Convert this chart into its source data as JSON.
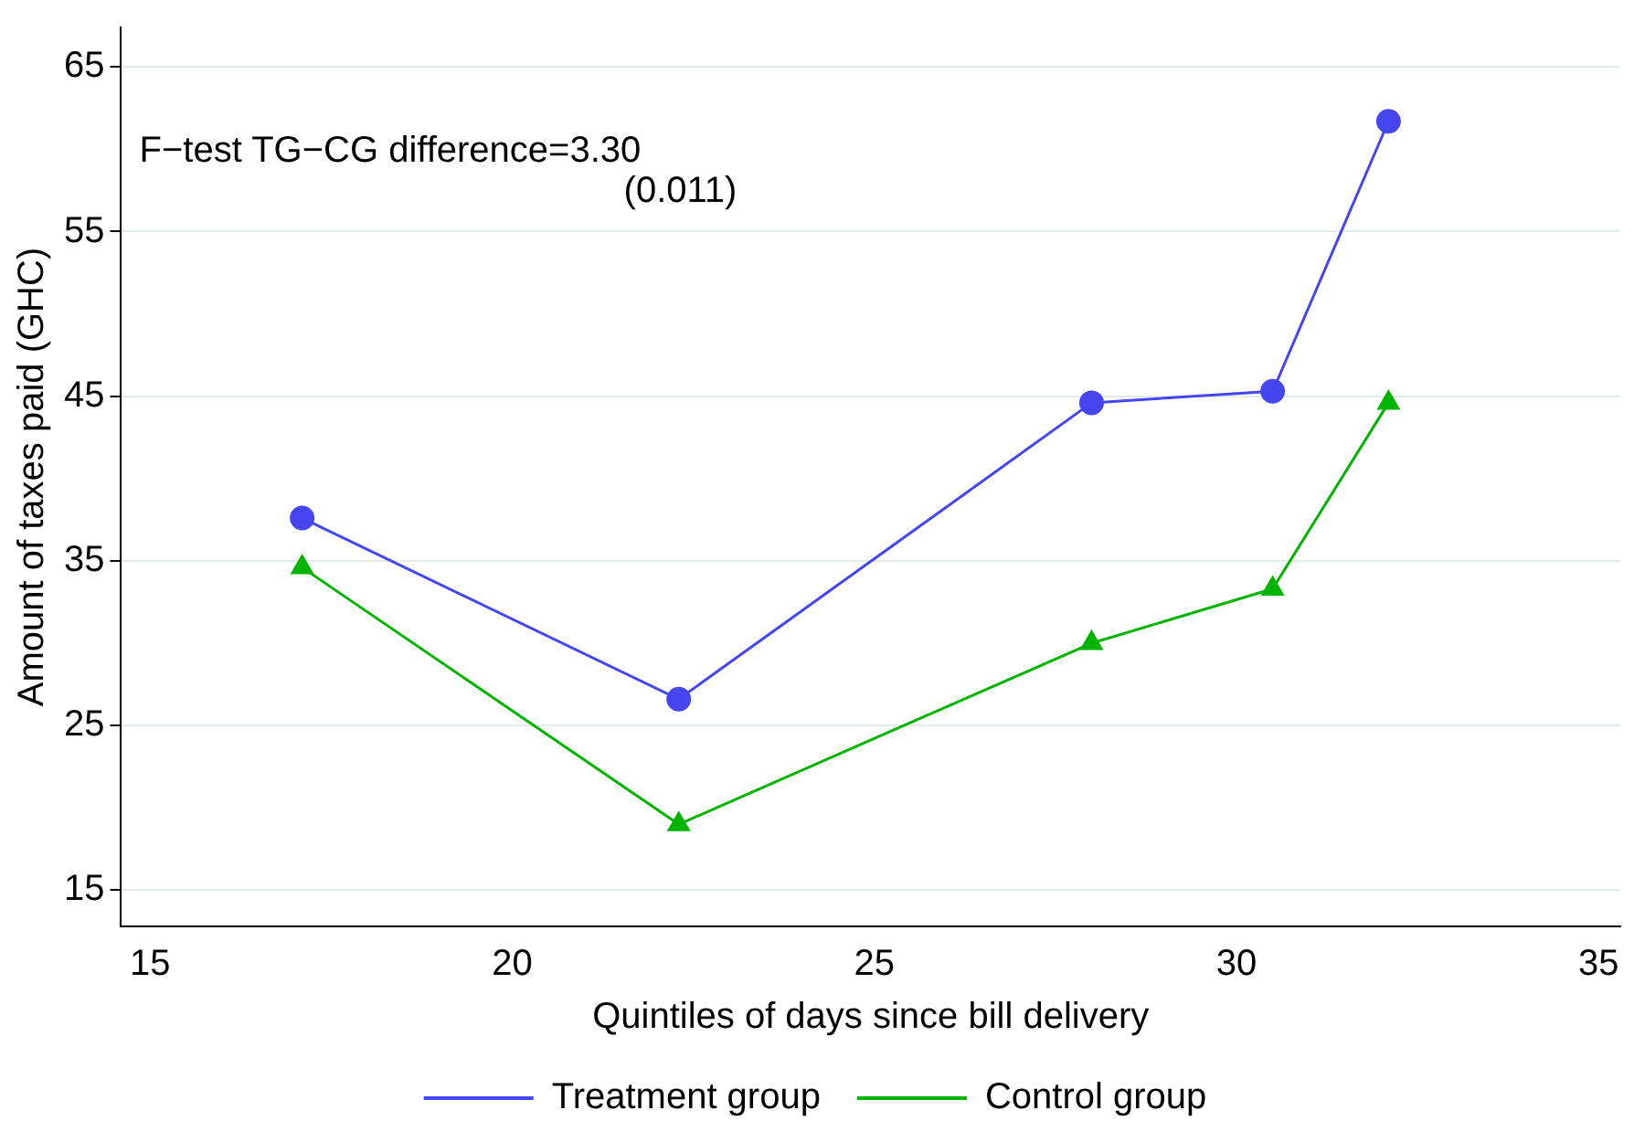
{
  "chart_data": {
    "type": "line",
    "xlabel": "Quintiles of days since bill delivery",
    "ylabel": "Amount of taxes paid (GHC)",
    "annotations": [
      "F−test TG−CG difference=3.30",
      "(0.011)"
    ],
    "series": [
      {
        "name": "Treatment group",
        "color": "#4646f0",
        "marker": "circle",
        "x": [
          17.1,
          22.3,
          28.0,
          30.5,
          32.1
        ],
        "values": [
          37.6,
          26.6,
          44.6,
          45.3,
          61.7
        ]
      },
      {
        "name": "Control group",
        "color": "#00b400",
        "marker": "triangle",
        "x": [
          17.1,
          22.3,
          28.0,
          30.5,
          32.1
        ],
        "values": [
          34.6,
          19.0,
          30.0,
          33.3,
          44.6
        ]
      }
    ],
    "xlim": [
      14.6,
      35.3
    ],
    "xticks": [
      15,
      20,
      25,
      30,
      35
    ],
    "ylim": [
      12.8,
      67.4
    ],
    "yticks": [
      15,
      25,
      35,
      45,
      55,
      65
    ],
    "grid": "y",
    "legend": "bottom",
    "line_style": "solid"
  }
}
